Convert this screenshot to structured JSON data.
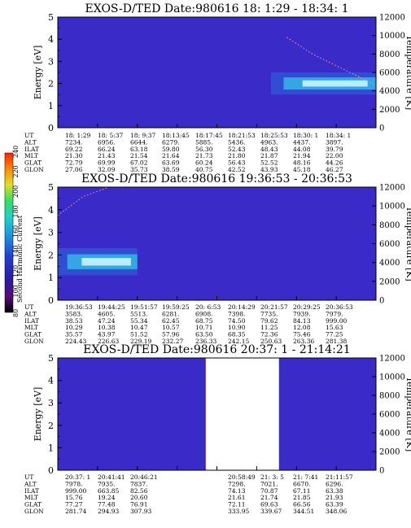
{
  "chart_data": [
    {
      "type": "heatmap",
      "title": "EXOS-D/TED   Date:980616  18: 1:29 - 18:34: 1",
      "ylabel": "Energy [eV]",
      "y2label": "Temperature [K]",
      "ylim": [
        0,
        5
      ],
      "y2lim": [
        0,
        12000
      ],
      "yticks": [
        "0",
        "1",
        "2",
        "3",
        "4",
        "5"
      ],
      "y2ticks": [
        "0",
        "2000",
        "4000",
        "6000",
        "8000",
        "10000",
        "12000"
      ],
      "background": "#3a2bc8",
      "coverage": [
        [
          0,
          1
        ]
      ],
      "emission": {
        "from": 0.67,
        "to": 1.0,
        "center_ev": 2.0,
        "width_ev": 0.5
      },
      "temperature_trace": [
        [
          0.72,
          9800
        ],
        [
          0.8,
          8000
        ],
        [
          0.9,
          6300
        ],
        [
          1.0,
          4600
        ]
      ],
      "ephemeris": {
        "labels": [
          "UT",
          "ALT",
          "ILAT",
          "MLT",
          "GLAT",
          "GLON"
        ],
        "columns": [
          [
            "18: 1:29",
            "7234.",
            "69.22",
            "21.30",
            "72.79",
            "27.06"
          ],
          [
            "18: 5:37",
            "6956.",
            "66.24",
            "21.43",
            "69.99",
            "32.09"
          ],
          [
            "18: 9:37",
            "6644.",
            "63.18",
            "21.54",
            "67.02",
            "35.73"
          ],
          [
            "18:13:45",
            "6279.",
            "59.80",
            "21.64",
            "63.69",
            "38.59"
          ],
          [
            "18:17:45",
            "5885.",
            "56.30",
            "21.73",
            "60.24",
            "40.75"
          ],
          [
            "18:21:53",
            "5436.",
            "52.43",
            "21.80",
            "56.43",
            "42.52"
          ],
          [
            "18:25:53",
            "4963.",
            "48.43",
            "21.87",
            "52.52",
            "43.93"
          ],
          [
            "18:30: 1",
            "4437.",
            "44.08",
            "21.94",
            "48.16",
            "45.18"
          ],
          [
            "18:34: 1",
            "3897.",
            "39.79",
            "22.00",
            "44.26",
            "46.27"
          ]
        ]
      }
    },
    {
      "type": "heatmap",
      "title": "EXOS-D/TED   Date:980616  19:36:53 - 20:36:53",
      "ylabel": "Energy [eV]",
      "y2label": "Temperature [K]",
      "ylim": [
        0,
        5
      ],
      "y2lim": [
        0,
        12000
      ],
      "yticks": [
        "0",
        "1",
        "2",
        "3",
        "4",
        "5"
      ],
      "y2ticks": [
        "0",
        "2000",
        "4000",
        "6000",
        "8000",
        "10000",
        "12000"
      ],
      "background": "#3a2bc8",
      "coverage": [
        [
          0,
          1
        ]
      ],
      "emission": {
        "from": 0.0,
        "to": 0.25,
        "center_ev": 1.7,
        "width_ev": 0.6
      },
      "temperature_trace": [
        [
          0.0,
          9000
        ],
        [
          0.08,
          11000
        ],
        [
          0.16,
          12000
        ]
      ],
      "ephemeris": {
        "labels": [
          "UT",
          "ALT",
          "ILAT",
          "MLT",
          "GLAT",
          "GLON"
        ],
        "columns": [
          [
            "19:36:53",
            "3583.",
            "38.53",
            "10.29",
            "35.57",
            "224.43"
          ],
          [
            "19:44:25",
            "4605.",
            "47.24",
            "10.38",
            "43.97",
            "226.63"
          ],
          [
            "19:51:57",
            "5513.",
            "55.34",
            "10.47",
            "51.52",
            "229.19"
          ],
          [
            "19:59:25",
            "6281.",
            "62.45",
            "10.57",
            "57.96",
            "232.27"
          ],
          [
            "20: 6:53",
            "6908.",
            "68.75",
            "10.71",
            "63.50",
            "236.33"
          ],
          [
            "20:14:29",
            "7398.",
            "74.50",
            "10.90",
            "68.35",
            "242.15"
          ],
          [
            "20:21:57",
            "7735.",
            "79.62",
            "11.25",
            "72.36",
            "250.63"
          ],
          [
            "20:29:25",
            "7939.",
            "84.13",
            "12.08",
            "75.46",
            "263.36"
          ],
          [
            "20:36:53",
            "7979.",
            "999.00",
            "15.63",
            "77.25",
            "281.38"
          ]
        ]
      }
    },
    {
      "type": "heatmap",
      "title": "EXOS-D/TED   Date:980616  20:37: 1 - 21:14:21",
      "ylabel": "Energy [eV]",
      "y2label": "Temperature [K]",
      "ylim": [
        0,
        5
      ],
      "y2lim": [
        0,
        12000
      ],
      "yticks": [
        "0",
        "1",
        "2",
        "3",
        "4",
        "5"
      ],
      "y2ticks": [
        "0",
        "2000",
        "4000",
        "6000",
        "8000",
        "10000",
        "12000"
      ],
      "background": "#3a2bc8",
      "coverage": [
        [
          0,
          0.465
        ],
        [
          0.695,
          1
        ]
      ],
      "emission": null,
      "temperature_trace": [],
      "ephemeris": {
        "labels": [
          "UT",
          "ALT",
          "ILAT",
          "MLT",
          "GLAT",
          "GLON"
        ],
        "columns_left": [
          [
            "20:37: 1",
            "7978.",
            "999.00",
            "15.76",
            "77.27",
            "281.74"
          ],
          [
            "20:41:41",
            "7935.",
            "663.85",
            "19.24",
            "77.48",
            "294.93"
          ],
          [
            "20:46:21",
            "7837.",
            "82.56",
            "20.60",
            "76.91",
            "307.93"
          ]
        ],
        "columns_right": [
          [
            "20:58:49",
            "7298.",
            "74.13",
            "21.61",
            "72.11",
            "333.95"
          ],
          [
            "21: 3: 5",
            "7021.",
            "70.87",
            "21.74",
            "69.63",
            "339.67"
          ],
          [
            "21: 7:41",
            "6670.",
            "67.11",
            "21.85",
            "66.56",
            "344.51"
          ],
          [
            "21:11:57",
            "6296.",
            "63.38",
            "21.93",
            "63.39",
            "348.06"
          ]
        ]
      }
    }
  ],
  "colorbar": {
    "label": "Second Harmonic Current",
    "ticks": [
      "80",
      "100",
      "120",
      "140",
      "160",
      "180",
      "200",
      "220",
      "240"
    ],
    "colors": [
      "#000000",
      "#5a0a78",
      "#2a1a9e",
      "#1f3fd8",
      "#1aa0e0",
      "#18d8c8",
      "#30e060",
      "#e0e020",
      "#ff8a00",
      "#ff2000"
    ]
  }
}
